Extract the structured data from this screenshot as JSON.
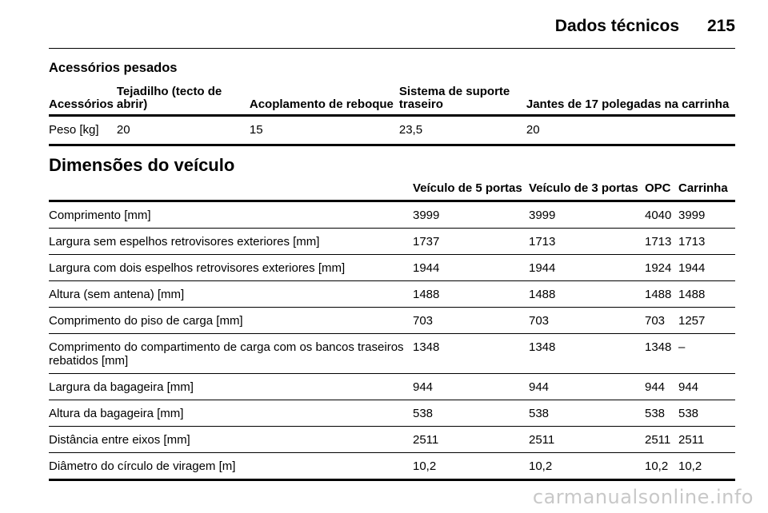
{
  "header": {
    "section": "Dados técnicos",
    "page_number": "215"
  },
  "accessories": {
    "heading": "Acessórios pesados",
    "columns": [
      "Acessórios",
      "Tejadilho (tecto de abrir)",
      "Acoplamento de reboque",
      "Sistema de suporte traseiro",
      "Jantes de 17 polegadas na carrinha"
    ],
    "row": [
      "Peso [kg]",
      "20",
      "15",
      "23,5",
      "20"
    ]
  },
  "dimensions": {
    "heading": "Dimensões do veículo",
    "columns": [
      "",
      "Veículo de 5 portas",
      "Veículo de 3 portas",
      "OPC",
      "Carrinha"
    ],
    "rows": [
      [
        "Comprimento [mm]",
        "3999",
        "3999",
        "4040",
        "3999"
      ],
      [
        "Largura sem espelhos retrovisores exteriores [mm]",
        "1737",
        "1713",
        "1713",
        "1713"
      ],
      [
        "Largura com dois espelhos retrovisores exteriores [mm]",
        "1944",
        "1944",
        "1924",
        "1944"
      ],
      [
        "Altura (sem antena) [mm]",
        "1488",
        "1488",
        "1488",
        "1488"
      ],
      [
        "Comprimento do piso de carga [mm]",
        "703",
        "703",
        "703",
        "1257"
      ],
      [
        "Comprimento do compartimento de carga com os bancos traseiros rebatidos [mm]",
        "1348",
        "1348",
        "1348",
        "–"
      ],
      [
        "Largura da bagageira [mm]",
        "944",
        "944",
        "944",
        "944"
      ],
      [
        "Altura da bagageira [mm]",
        "538",
        "538",
        "538",
        "538"
      ],
      [
        "Distância entre eixos [mm]",
        "2511",
        "2511",
        "2511",
        "2511"
      ],
      [
        "Diâmetro do círculo de viragem [m]",
        "10,2",
        "10,2",
        "10,2",
        "10,2"
      ]
    ]
  },
  "watermark": "carmanualsonline.info"
}
